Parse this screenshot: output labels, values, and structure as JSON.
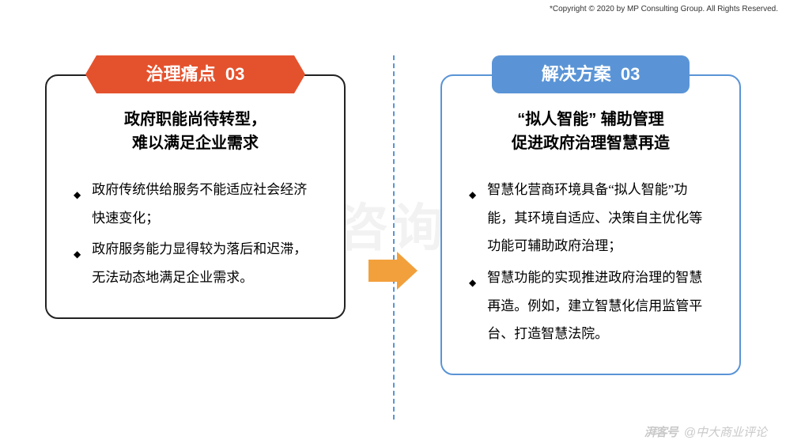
{
  "copyright": "*Copyright © 2020 by MP Consulting Group. All Rights Reserved.",
  "watermark_text": "中大咨询集团",
  "colors": {
    "red": "#e4522d",
    "blue": "#5a94d6",
    "arrow": "#f2a03c",
    "border_dark": "#222222",
    "watermark": "#f2f2f2",
    "footer": "#c9c9c9"
  },
  "left": {
    "label_text": "治理痛点",
    "label_num": "03",
    "title": "政府职能尚待转型，\n难以满足企业需求",
    "bullets": [
      "政府传统供给服务不能适应社会经济快速变化；",
      "政府服务能力显得较为落后和迟滞，无法动态地满足企业需求。"
    ]
  },
  "right": {
    "label_text": "解决方案",
    "label_num": "03",
    "title": "“拟人智能” 辅助管理\n促进政府治理智慧再造",
    "bullets": [
      "智慧化营商环境具备“拟人智能”功能，其环境自适应、决策自主优化等功能可辅助政府治理；",
      "智慧功能的实现推进政府治理的智慧再造。例如，建立智慧化信用监管平台、打造智慧法院。"
    ]
  },
  "footer": {
    "logo": "湃客号",
    "text": "@中大商业评论"
  }
}
